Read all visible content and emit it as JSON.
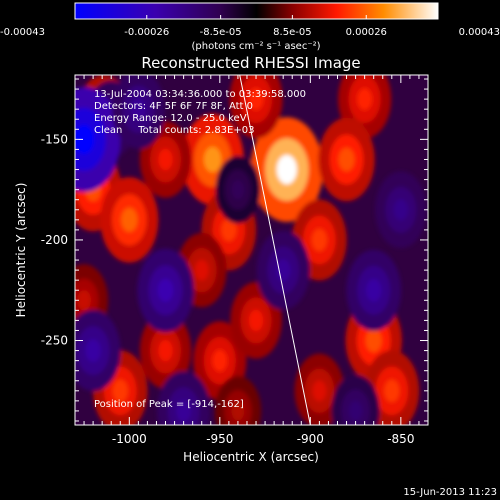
{
  "colors": {
    "background": "#000000",
    "axis": "#ffffff",
    "limb": "#ffffff"
  },
  "chart_data": {
    "type": "heatmap",
    "title": "Reconstructed RHESSI Image",
    "xlabel": "Heliocentric X (arcsec)",
    "ylabel": "Heliocentric Y (arcsec)",
    "xlim": [
      -1030,
      -835
    ],
    "ylim": [
      -292,
      -118
    ],
    "xticks": [
      -1000,
      -950,
      -900,
      -850
    ],
    "yticks": [
      -150,
      -200,
      -250
    ],
    "xtick_labels": [
      "-1000",
      "-950",
      "-900",
      "-850"
    ],
    "ytick_labels": [
      "-150",
      "-200",
      "-250"
    ],
    "colorbar": {
      "min": -0.00043,
      "max": 0.00043,
      "ticks": [
        -0.00043,
        -0.00026,
        -8.5e-05,
        8.5e-05,
        0.00026,
        0.00043
      ],
      "tick_labels": [
        "-0.00043",
        "-0.00026",
        "-8.5e-05",
        "8.5e-05",
        "0.00026",
        "0.00043"
      ],
      "units_label": "(photons cm⁻² s⁻¹ asec⁻²)"
    },
    "info_lines": [
      "13-Jul-2004 03:34:36.000 to 03:39:58.000",
      "Detectors: 4F 5F 6F 7F 8F, Att 0",
      "Energy Range: 12.0 - 25.0 keV",
      "Clean     Total counts: 2.83E+03"
    ],
    "peak": {
      "x": -914,
      "y": -162,
      "label": "Position of Peak = [-914,-162]"
    },
    "limb_line": [
      [
        -939,
        -118
      ],
      [
        -900,
        -292
      ]
    ],
    "blobs": [
      {
        "x": -913,
        "y": -165,
        "value": 0.00043
      },
      {
        "x": -954,
        "y": -160,
        "value": 0.00031
      },
      {
        "x": -1014,
        "y": -138,
        "value": 0.00022
      },
      {
        "x": -1020,
        "y": -175,
        "value": 0.00024
      },
      {
        "x": -1000,
        "y": -190,
        "value": 0.00026
      },
      {
        "x": -980,
        "y": -160,
        "value": 0.00018
      },
      {
        "x": -930,
        "y": -130,
        "value": 0.0002
      },
      {
        "x": -870,
        "y": -130,
        "value": 0.0002
      },
      {
        "x": -880,
        "y": -160,
        "value": 0.00024
      },
      {
        "x": -895,
        "y": -200,
        "value": 0.00022
      },
      {
        "x": -945,
        "y": -195,
        "value": 0.00022
      },
      {
        "x": -960,
        "y": -215,
        "value": 0.00016
      },
      {
        "x": -1025,
        "y": -230,
        "value": 0.00014
      },
      {
        "x": -1005,
        "y": -275,
        "value": 0.00022
      },
      {
        "x": -980,
        "y": -255,
        "value": 0.00018
      },
      {
        "x": -950,
        "y": -260,
        "value": 0.0002
      },
      {
        "x": -930,
        "y": -240,
        "value": 0.00018
      },
      {
        "x": -865,
        "y": -250,
        "value": 0.00024
      },
      {
        "x": -855,
        "y": -275,
        "value": 0.00022
      },
      {
        "x": -895,
        "y": -275,
        "value": 0.00016
      },
      {
        "x": -940,
        "y": -285,
        "value": 0.00012
      },
      {
        "x": -1010,
        "y": -140,
        "value": -0.00018
      },
      {
        "x": -1025,
        "y": -150,
        "value": -0.00043
      },
      {
        "x": -995,
        "y": -135,
        "value": -0.0002
      },
      {
        "x": -980,
        "y": -225,
        "value": -0.00024
      },
      {
        "x": -1020,
        "y": -255,
        "value": -0.00022
      },
      {
        "x": -915,
        "y": -215,
        "value": -0.0002
      },
      {
        "x": -865,
        "y": -225,
        "value": -0.00022
      },
      {
        "x": -850,
        "y": -185,
        "value": -0.00018
      },
      {
        "x": -970,
        "y": -285,
        "value": -0.0002
      },
      {
        "x": -875,
        "y": -285,
        "value": -0.00014
      },
      {
        "x": -940,
        "y": -175,
        "value": -0.0001
      }
    ]
  },
  "footer": {
    "timestamp": "15-Jun-2013 11:23"
  }
}
